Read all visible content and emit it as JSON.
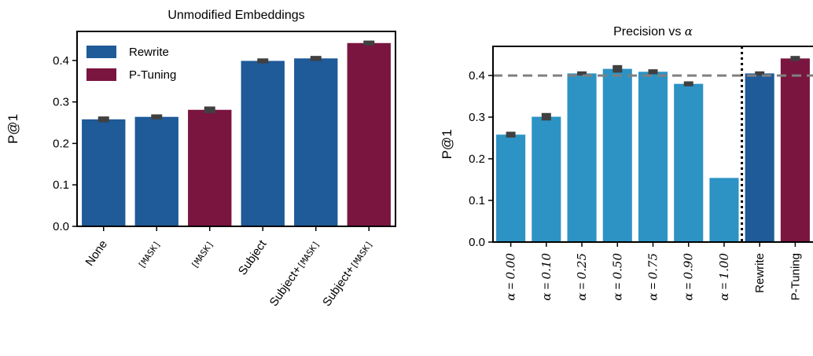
{
  "colors": {
    "rewrite": "#1f5a99",
    "ptuning": "#7a1540",
    "alpha": "#2c93c4",
    "errorbar": "#404040",
    "refline": "#808080"
  },
  "chart_data": [
    {
      "type": "bar",
      "title": "Unmodified Embeddings",
      "ylabel": "P@1",
      "ylim": [
        0,
        0.47
      ],
      "yticks": [
        "0.0",
        "0.1",
        "0.2",
        "0.3",
        "0.4"
      ],
      "legend": [
        {
          "name": "Rewrite",
          "color": "#1f5a99"
        },
        {
          "name": "P-Tuning",
          "color": "#7a1540"
        }
      ],
      "legend_position": "top-left",
      "bars": [
        {
          "tick": [
            {
              "t": "None",
              "mono": false
            }
          ],
          "value": 0.258,
          "err": 0.007,
          "series": "rewrite"
        },
        {
          "tick": [
            {
              "t": "[MASK]",
              "mono": true
            }
          ],
          "value": 0.264,
          "err": 0.006,
          "series": "rewrite"
        },
        {
          "tick": [
            {
              "t": "[MASK]",
              "mono": true
            }
          ],
          "value": 0.281,
          "err": 0.008,
          "series": "ptuning"
        },
        {
          "tick": [
            {
              "t": "Subject",
              "mono": false
            }
          ],
          "value": 0.399,
          "err": 0.006,
          "series": "rewrite"
        },
        {
          "tick": [
            {
              "t": "Subject+",
              "mono": false
            },
            {
              "t": "[MASK]",
              "mono": true
            }
          ],
          "value": 0.405,
          "err": 0.006,
          "series": "rewrite"
        },
        {
          "tick": [
            {
              "t": "Subject+",
              "mono": false
            },
            {
              "t": "[MASK]",
              "mono": true
            }
          ],
          "value": 0.442,
          "err": 0.006,
          "series": "ptuning"
        }
      ]
    },
    {
      "type": "bar",
      "title_prefix": "Precision vs ",
      "title_symbol": "α",
      "ylabel": "P@1",
      "ylim": [
        0,
        0.47
      ],
      "yticks": [
        "0.0",
        "0.1",
        "0.2",
        "0.3",
        "0.4"
      ],
      "reference_line": 0.4,
      "separator_after_index": 6,
      "bars": [
        {
          "sym": "α",
          "eq": " = ",
          "num": "0.00",
          "value": 0.258,
          "err": 0.007,
          "series": "alpha"
        },
        {
          "sym": "α",
          "eq": " = ",
          "num": "0.10",
          "value": 0.301,
          "err": 0.009,
          "series": "alpha"
        },
        {
          "sym": "α",
          "eq": " = ",
          "num": "0.25",
          "value": 0.405,
          "err": 0.005,
          "series": "alpha"
        },
        {
          "sym": "α",
          "eq": " = ",
          "num": "0.50",
          "value": 0.416,
          "err": 0.009,
          "series": "alpha"
        },
        {
          "sym": "α",
          "eq": " = ",
          "num": "0.75",
          "value": 0.409,
          "err": 0.006,
          "series": "alpha"
        },
        {
          "sym": "α",
          "eq": " = ",
          "num": "0.90",
          "value": 0.38,
          "err": 0.006,
          "series": "alpha"
        },
        {
          "sym": "α",
          "eq": " = ",
          "num": "1.00",
          "value": 0.154,
          "err": 0,
          "series": "alpha"
        },
        {
          "label": "Rewrite",
          "value": 0.405,
          "err": 0.005,
          "series": "rewrite"
        },
        {
          "label": "P-Tuning",
          "value": 0.441,
          "err": 0.006,
          "series": "ptuning"
        }
      ]
    }
  ]
}
